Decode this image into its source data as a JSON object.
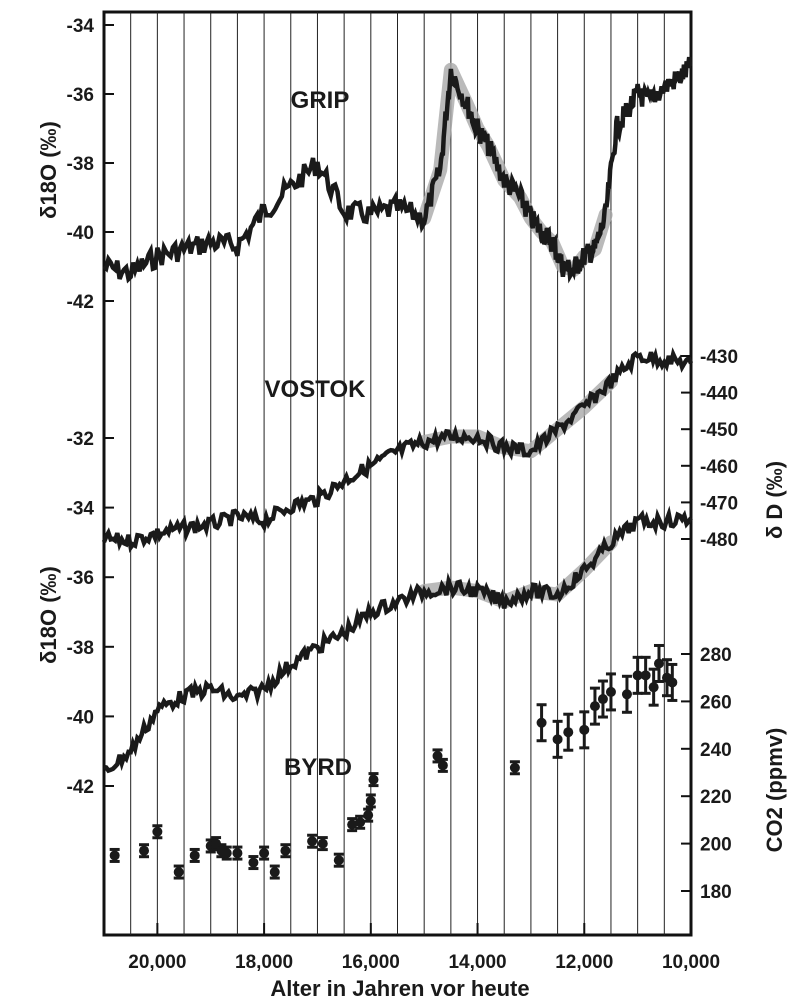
{
  "chart_data": {
    "type": "line",
    "xlabel": "Alter in Jahren vor heute",
    "xlim": [
      21000,
      10000
    ],
    "x_ticks": [
      "20,000",
      "18,000",
      "16,000",
      "14,000",
      "12,000",
      "10,000"
    ],
    "grid": "vertical lines every 500 years",
    "left_axis_label_upper": "δ18O (‰)",
    "left_axis_label_lower": "δ18O (‰)",
    "right_axis_label_upper": "δ D (‰)",
    "right_axis_label_lower": "CO2 (ppmv)",
    "grip_ticks": [
      "-34",
      "-36",
      "-38",
      "-40",
      "-42"
    ],
    "lower_d18o_ticks": [
      "-32",
      "-34",
      "-36",
      "-38",
      "-40",
      "-42"
    ],
    "dD_ticks": [
      "-430",
      "-440",
      "-450",
      "-460",
      "-470",
      "-480"
    ],
    "co2_ticks": [
      "280",
      "260",
      "240",
      "220",
      "200",
      "180"
    ],
    "series": [
      {
        "name": "GRIP",
        "axis": "δ18O (‰) upper",
        "x": [
          21000,
          20500,
          20000,
          19500,
          19000,
          18500,
          18000,
          17500,
          17000,
          16500,
          16000,
          15500,
          15000,
          14700,
          14500,
          14200,
          14000,
          13800,
          13500,
          13200,
          13000,
          12800,
          12600,
          12400,
          12200,
          12000,
          11800,
          11600,
          11400,
          11200,
          11000,
          10800,
          10500,
          10200,
          10000
        ],
        "y": [
          -41.0,
          -41.2,
          -40.7,
          -40.5,
          -40.3,
          -40.4,
          -39.4,
          -38.7,
          -38.0,
          -39.4,
          -39.5,
          -39.3,
          -39.6,
          -38.2,
          -35.3,
          -36.3,
          -37.0,
          -37.5,
          -38.5,
          -39.0,
          -39.6,
          -40.0,
          -40.3,
          -41.0,
          -41.1,
          -40.7,
          -40.5,
          -39.5,
          -37.0,
          -36.5,
          -36.0,
          -36.2,
          -35.8,
          -35.5,
          -35.2
        ]
      },
      {
        "name": "VOSTOK",
        "axis": "δ D (‰)",
        "x": [
          21000,
          20500,
          20000,
          19500,
          19000,
          18500,
          18000,
          17500,
          17000,
          16500,
          16000,
          15500,
          15000,
          14500,
          14000,
          13500,
          13000,
          12500,
          12000,
          11500,
          11000,
          10500,
          10000
        ],
        "y": [
          -480.0,
          -480.5,
          -478.5,
          -477.0,
          -476.0,
          -474.0,
          -475.0,
          -471.0,
          -469.0,
          -464.0,
          -460.0,
          -456.0,
          -453.5,
          -452.0,
          -452.0,
          -455.0,
          -456.0,
          -450.0,
          -444.0,
          -437.0,
          -430.0,
          -431.0,
          -432.0
        ]
      },
      {
        "name": "BYRD",
        "axis": "δ18O (‰) lower",
        "x": [
          21000,
          20500,
          20000,
          19500,
          19000,
          18500,
          18000,
          17500,
          17000,
          16500,
          16000,
          15500,
          15000,
          14500,
          14000,
          13500,
          13000,
          12500,
          12000,
          11500,
          11000,
          10500,
          10000
        ],
        "y": [
          -41.6,
          -41.0,
          -39.8,
          -39.4,
          -39.2,
          -39.5,
          -39.2,
          -38.5,
          -38.0,
          -37.6,
          -37.0,
          -36.7,
          -36.4,
          -36.3,
          -36.4,
          -36.7,
          -36.4,
          -36.5,
          -35.8,
          -35.0,
          -34.4,
          -34.4,
          -34.3
        ]
      },
      {
        "name": "CO2",
        "axis": "CO2 (ppmv)",
        "x": [
          20800,
          20250,
          20000,
          19600,
          19300,
          19000,
          18900,
          18800,
          18700,
          18500,
          18200,
          18000,
          17800,
          17600,
          17100,
          16900,
          16600,
          16350,
          16200,
          16050,
          16000,
          15950,
          14750,
          14650,
          13300,
          12800,
          12500,
          12300,
          12000,
          11800,
          11650,
          11500,
          11200,
          11000,
          10850,
          10700,
          10600,
          10450,
          10350
        ],
        "y": [
          195,
          197,
          205,
          188,
          195,
          199,
          200,
          197,
          196,
          196,
          192,
          196,
          188,
          197,
          201,
          200,
          193,
          208,
          209,
          212,
          218,
          227,
          237,
          233,
          232,
          251,
          244,
          247,
          248,
          258,
          261,
          264,
          263,
          271,
          271,
          266,
          276,
          270,
          268
        ]
      }
    ],
    "highlight_band": "grey shaded band over 15000 to 11500"
  }
}
